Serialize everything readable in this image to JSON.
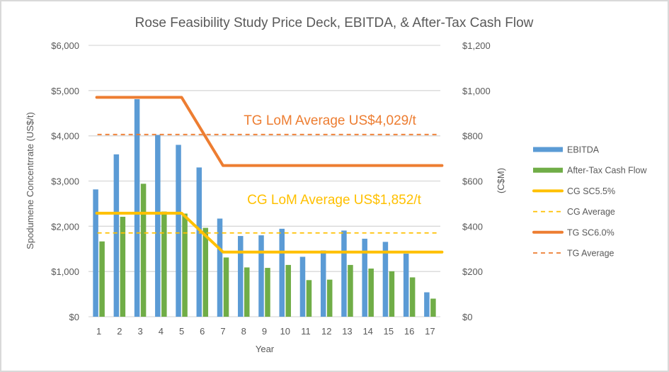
{
  "chart_data": {
    "type": "bar",
    "title": "Rose Feasibility Study Price Deck, EBITDA, & After-Tax Cash Flow",
    "xlabel": "Year",
    "ylabel_left": "Spodumene Concentrrate (US$/t)",
    "ylabel_right": "(C$M)",
    "categories": [
      "1",
      "2",
      "3",
      "4",
      "5",
      "6",
      "7",
      "8",
      "9",
      "10",
      "11",
      "12",
      "13",
      "14",
      "15",
      "16",
      "17"
    ],
    "y_left": {
      "min": 0,
      "max": 6000,
      "step": 1000,
      "ticks": [
        "$0",
        "$1,000",
        "$2,000",
        "$3,000",
        "$4,000",
        "$5,000",
        "$6,000"
      ]
    },
    "y_right": {
      "min": 0,
      "max": 1200,
      "step": 200,
      "ticks": [
        "$0",
        "$200",
        "$400",
        "$600",
        "$800",
        "$1,000",
        "$1,200"
      ]
    },
    "grid": true,
    "legend_position": "right",
    "series": [
      {
        "name": "EBITDA",
        "type": "bar",
        "axis": "right",
        "color": "#5b9bd5",
        "values": [
          563,
          718,
          962,
          804,
          760,
          660,
          434,
          357,
          360,
          389,
          265,
          293,
          381,
          345,
          331,
          279,
          108
        ]
      },
      {
        "name": "After-Tax Cash Flow",
        "type": "bar",
        "axis": "right",
        "color": "#70ad47",
        "values": [
          333,
          442,
          588,
          465,
          456,
          393,
          262,
          218,
          216,
          229,
          162,
          164,
          229,
          213,
          201,
          174,
          80
        ]
      },
      {
        "name": "CG SC5.5%",
        "type": "line",
        "axis": "left",
        "color": "#ffc000",
        "dash": false,
        "values": [
          2290,
          2290,
          2290,
          2290,
          2290,
          1860,
          1430,
          1430,
          1430,
          1430,
          1430,
          1430,
          1430,
          1430,
          1430,
          1430,
          1430
        ]
      },
      {
        "name": "CG Average",
        "type": "line",
        "axis": "left",
        "color": "#ffc000",
        "dash": true,
        "values": [
          1852,
          1852,
          1852,
          1852,
          1852,
          1852,
          1852,
          1852,
          1852,
          1852,
          1852,
          1852,
          1852,
          1852,
          1852,
          1852,
          1852
        ]
      },
      {
        "name": "TG SC6.0%",
        "type": "line",
        "axis": "left",
        "color": "#ed7d31",
        "dash": false,
        "values": [
          4850,
          4850,
          4850,
          4850,
          4850,
          4096,
          3342,
          3342,
          3342,
          3342,
          3342,
          3342,
          3342,
          3342,
          3342,
          3342,
          3342
        ]
      },
      {
        "name": "TG Average",
        "type": "line",
        "axis": "left",
        "color": "#ed7d31",
        "dash": true,
        "values": [
          4029,
          4029,
          4029,
          4029,
          4029,
          4029,
          4029,
          4029,
          4029,
          4029,
          4029,
          4029,
          4029,
          4029,
          4029,
          4029,
          4029
        ]
      }
    ],
    "annotations": [
      {
        "text": "TG LoM Average US$4,029/t",
        "color": "#ed7d31",
        "anchor_value": 4029,
        "axis": "left"
      },
      {
        "text": "CG LoM Average US$1,852/t",
        "color": "#ffc000",
        "anchor_value": 1852,
        "axis": "left"
      }
    ]
  }
}
